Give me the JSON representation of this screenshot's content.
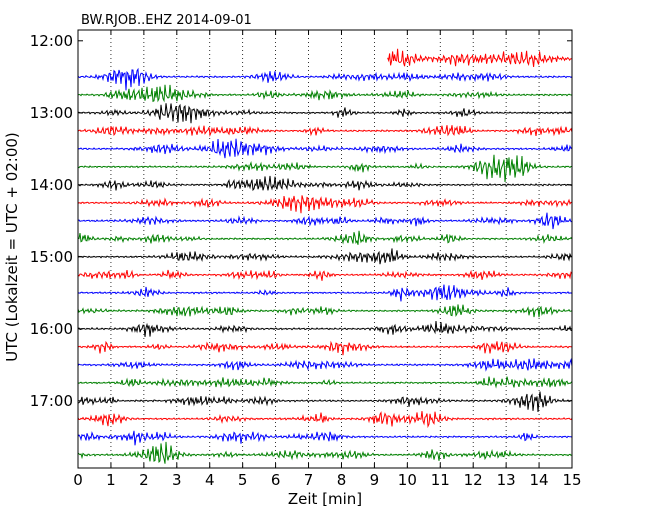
{
  "chart_data": {
    "type": "line",
    "title": "BW.RJOB..EHZ 2014-09-01",
    "xlabel": "Zeit  [min]",
    "ylabel": "UTC (Lokalzeit = UTC + 02:00)",
    "xlim": [
      0,
      15
    ],
    "x_ticks": [
      "0",
      "1",
      "2",
      "3",
      "4",
      "5",
      "6",
      "7",
      "8",
      "9",
      "10",
      "11",
      "12",
      "13",
      "14",
      "15"
    ],
    "y_ticks": [
      "12:00",
      "13:00",
      "14:00",
      "15:00",
      "16:00",
      "17:00"
    ],
    "y_tick_minutes": [
      720,
      780,
      840,
      900,
      960,
      1020
    ],
    "ylim_minutes": [
      711,
      1076
    ],
    "grid_x": "dotted vertical at every minute",
    "row_colors": [
      "#ff0000",
      "#0000ff",
      "#008000",
      "#000000"
    ],
    "traces": [
      {
        "row_start_utc_min": 735,
        "x_start": 9.4,
        "x_end": 15,
        "color": "#ff0000"
      },
      {
        "row_start_utc_min": 750,
        "x_start": 0,
        "x_end": 15,
        "color": "#0000ff"
      },
      {
        "row_start_utc_min": 765,
        "x_start": 0,
        "x_end": 15,
        "color": "#008000"
      },
      {
        "row_start_utc_min": 780,
        "x_start": 0,
        "x_end": 15,
        "color": "#000000"
      },
      {
        "row_start_utc_min": 795,
        "x_start": 0,
        "x_end": 15,
        "color": "#ff0000"
      },
      {
        "row_start_utc_min": 810,
        "x_start": 0,
        "x_end": 15,
        "color": "#0000ff"
      },
      {
        "row_start_utc_min": 825,
        "x_start": 0,
        "x_end": 15,
        "color": "#008000"
      },
      {
        "row_start_utc_min": 840,
        "x_start": 0,
        "x_end": 15,
        "color": "#000000"
      },
      {
        "row_start_utc_min": 855,
        "x_start": 0,
        "x_end": 15,
        "color": "#ff0000"
      },
      {
        "row_start_utc_min": 870,
        "x_start": 0,
        "x_end": 15,
        "color": "#0000ff"
      },
      {
        "row_start_utc_min": 885,
        "x_start": 0,
        "x_end": 15,
        "color": "#008000"
      },
      {
        "row_start_utc_min": 900,
        "x_start": 0,
        "x_end": 15,
        "color": "#000000"
      },
      {
        "row_start_utc_min": 915,
        "x_start": 0,
        "x_end": 15,
        "color": "#ff0000"
      },
      {
        "row_start_utc_min": 930,
        "x_start": 0,
        "x_end": 15,
        "color": "#0000ff"
      },
      {
        "row_start_utc_min": 945,
        "x_start": 0,
        "x_end": 15,
        "color": "#008000"
      },
      {
        "row_start_utc_min": 960,
        "x_start": 0,
        "x_end": 15,
        "color": "#000000"
      },
      {
        "row_start_utc_min": 975,
        "x_start": 0,
        "x_end": 15,
        "color": "#ff0000"
      },
      {
        "row_start_utc_min": 990,
        "x_start": 0,
        "x_end": 15,
        "color": "#0000ff"
      },
      {
        "row_start_utc_min": 1005,
        "x_start": 0,
        "x_end": 15,
        "color": "#008000"
      },
      {
        "row_start_utc_min": 1020,
        "x_start": 0,
        "x_end": 15,
        "color": "#000000"
      },
      {
        "row_start_utc_min": 1035,
        "x_start": 0,
        "x_end": 15,
        "color": "#ff0000"
      },
      {
        "row_start_utc_min": 1050,
        "x_start": 0,
        "x_end": 15,
        "color": "#0000ff"
      },
      {
        "row_start_utc_min": 1065,
        "x_start": 0,
        "x_end": 15,
        "color": "#008000"
      }
    ]
  }
}
